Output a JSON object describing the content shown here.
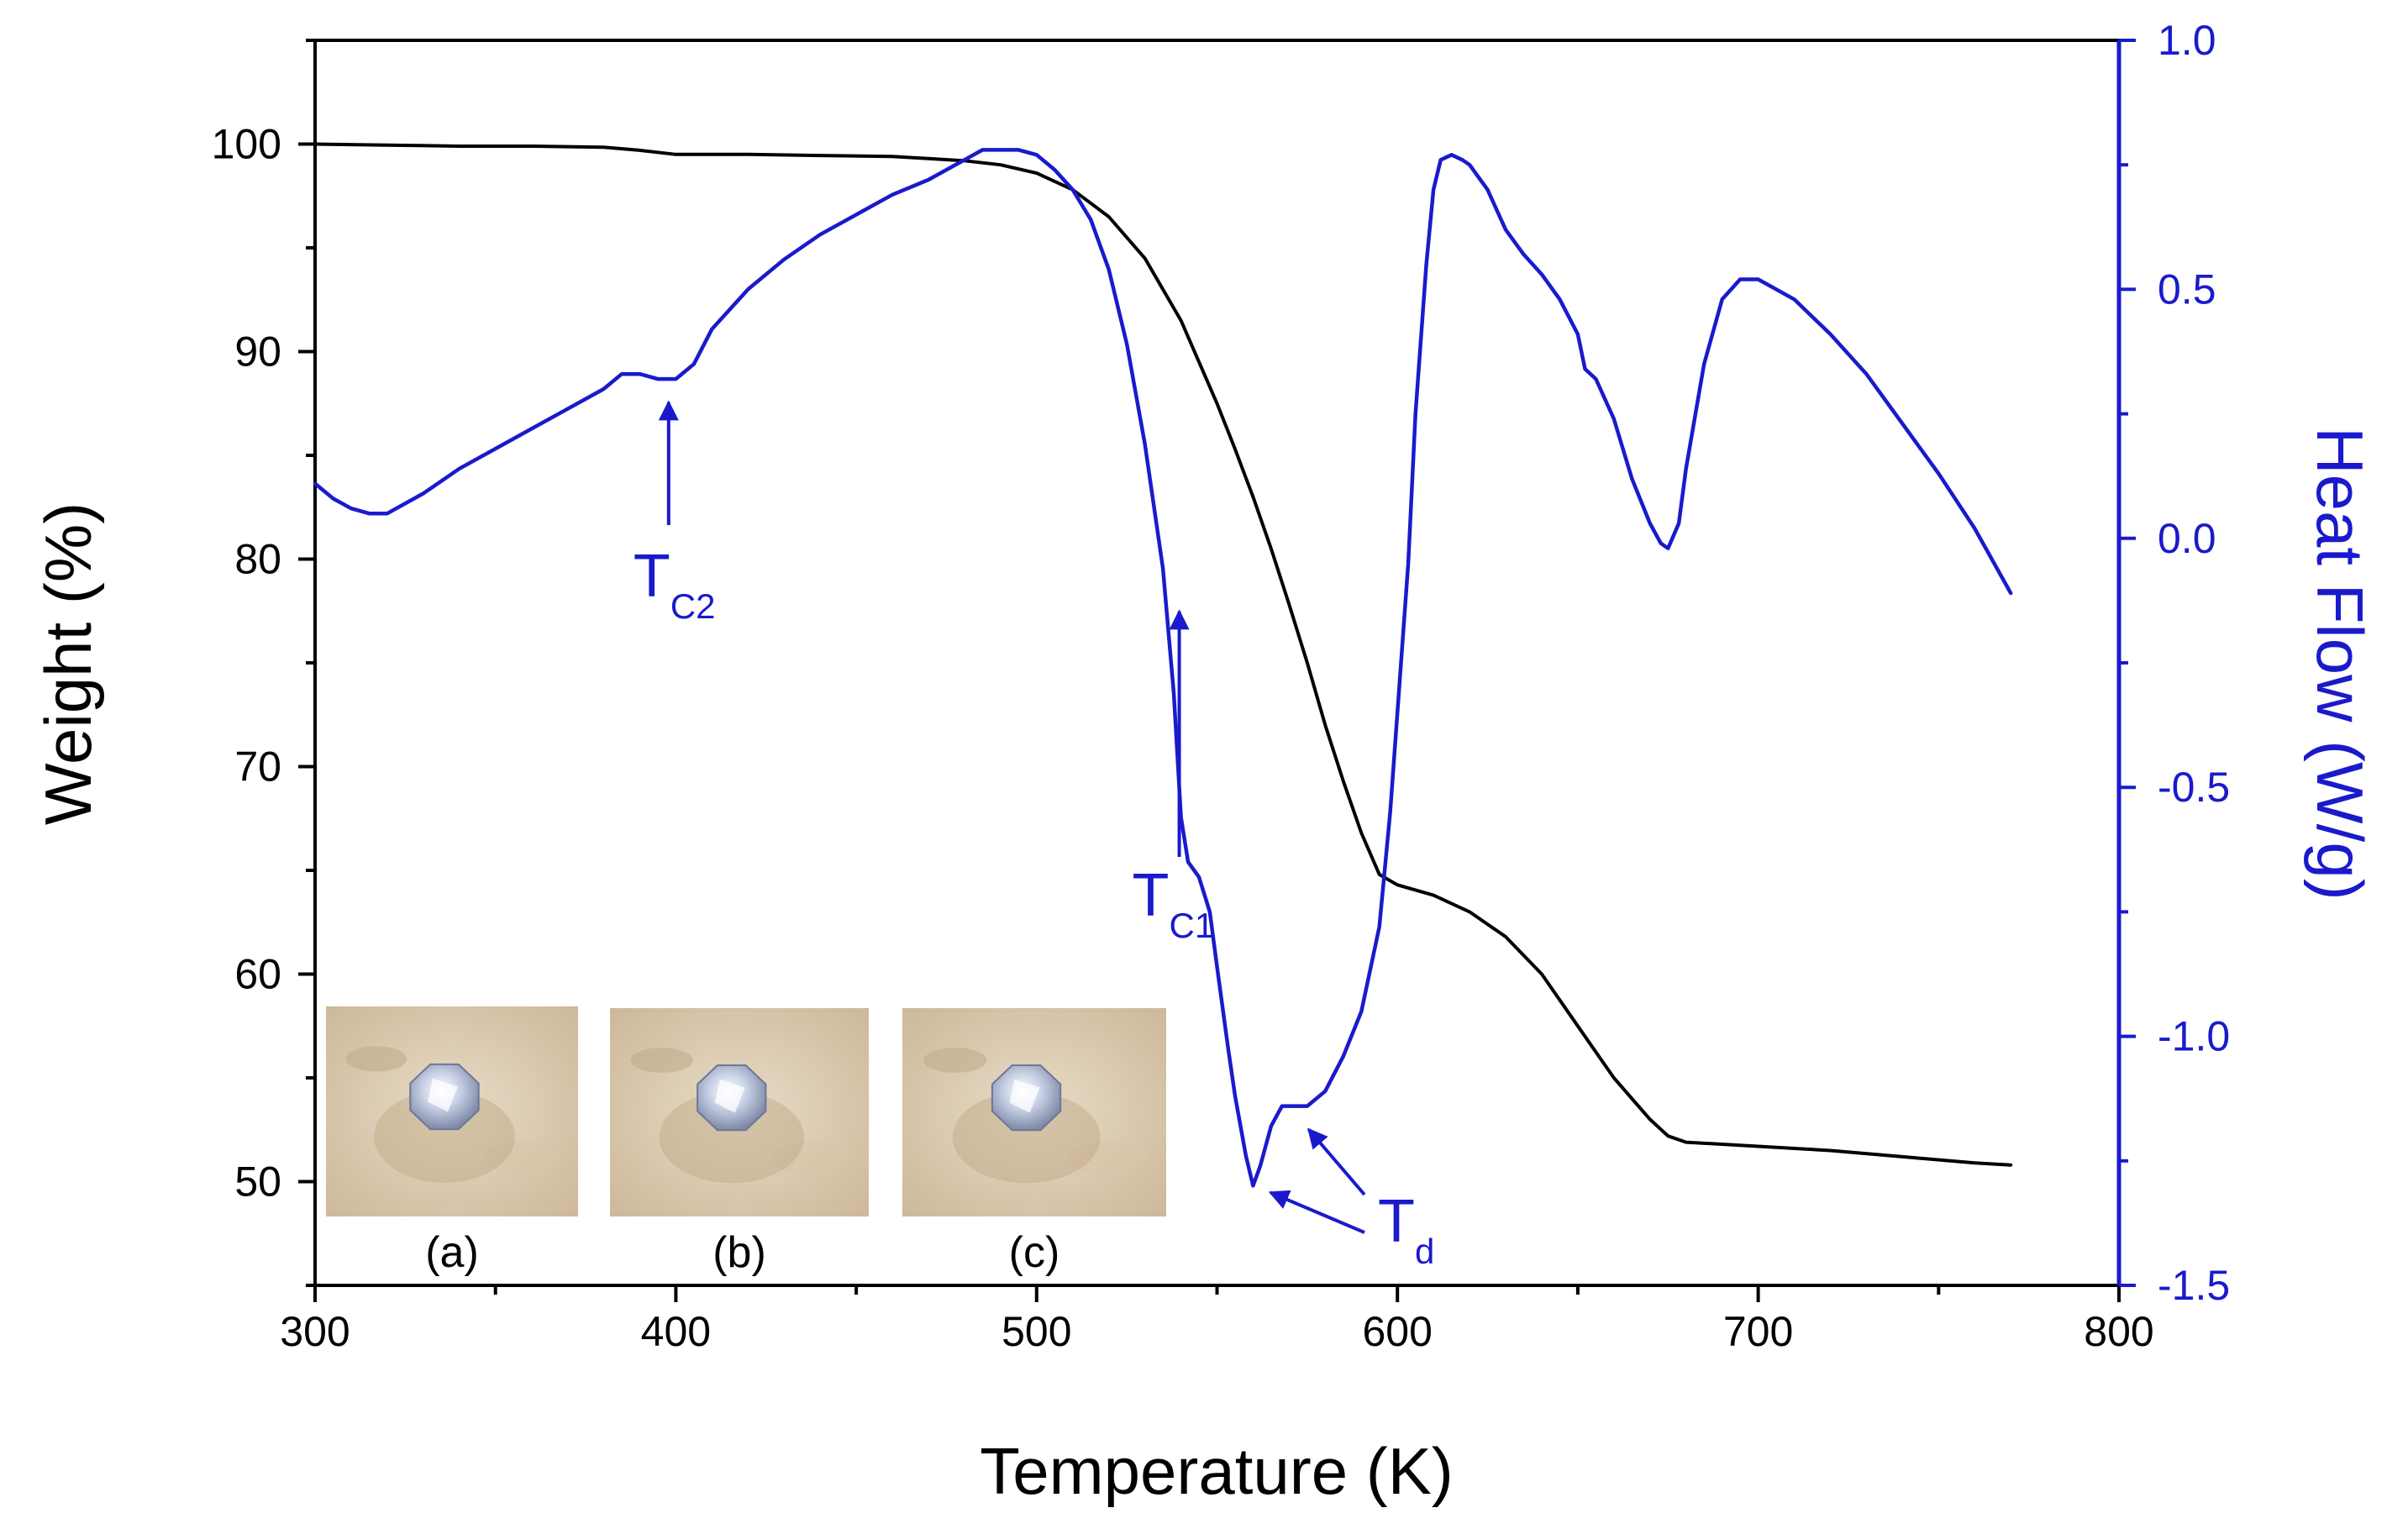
{
  "chart_data": {
    "type": "line",
    "title": "",
    "xlabel": "Temperature (K)",
    "ylabel": "Weight (%)",
    "ylabel_right": "Heat Flow (W/g)",
    "xlim": [
      300,
      800
    ],
    "ylim": [
      45,
      105
    ],
    "ylim_right": [
      -1.5,
      1.0
    ],
    "x_ticks": [
      300,
      400,
      500,
      600,
      700,
      800
    ],
    "y_ticks": [
      50,
      60,
      70,
      80,
      90,
      100
    ],
    "y_ticks_right": [
      "1.0",
      "0.5",
      "0.0",
      "-0.5",
      "-1.0",
      "-1.5"
    ],
    "y_ticks_right_values": [
      1.0,
      0.5,
      0.0,
      -0.5,
      -1.0,
      -1.5
    ],
    "colors": {
      "weight": "#000000",
      "heat_flow": "#1a1acc",
      "axis_right": "#1a1acc"
    },
    "series": [
      {
        "name": "Weight",
        "axis": "left",
        "color": "#000000",
        "x": [
          300,
          320,
          340,
          360,
          380,
          390,
          400,
          420,
          440,
          460,
          470,
          480,
          490,
          500,
          510,
          520,
          530,
          540,
          550,
          555,
          560,
          565,
          570,
          575,
          580,
          585,
          590,
          595,
          600,
          610,
          620,
          630,
          640,
          650,
          660,
          670,
          675,
          680,
          700,
          720,
          740,
          760,
          770
        ],
        "y": [
          100,
          99.95,
          99.9,
          99.9,
          99.85,
          99.7,
          99.5,
          99.5,
          99.45,
          99.4,
          99.3,
          99.2,
          99.0,
          98.6,
          97.8,
          96.5,
          94.5,
          91.5,
          87.5,
          85.3,
          83.0,
          80.5,
          77.8,
          75.0,
          72.0,
          69.3,
          66.8,
          64.8,
          64.3,
          63.8,
          63.0,
          61.8,
          60.0,
          57.5,
          55.0,
          53.0,
          52.2,
          51.9,
          51.7,
          51.5,
          51.2,
          50.9,
          50.8
        ]
      },
      {
        "name": "Heat Flow",
        "axis": "right",
        "color": "#1a1acc",
        "x": [
          300,
          305,
          310,
          315,
          320,
          330,
          340,
          350,
          360,
          370,
          380,
          385,
          390,
          395,
          400,
          405,
          410,
          420,
          430,
          440,
          450,
          460,
          470,
          480,
          485,
          490,
          495,
          500,
          505,
          510,
          515,
          520,
          525,
          530,
          535,
          538,
          540,
          542,
          545,
          548,
          550,
          553,
          555,
          558,
          560,
          562,
          565,
          568,
          570,
          575,
          580,
          585,
          590,
          595,
          598,
          600,
          603,
          605,
          608,
          610,
          612,
          615,
          618,
          620,
          625,
          630,
          635,
          640,
          645,
          650,
          652,
          655,
          660,
          665,
          670,
          673,
          675,
          678,
          680,
          685,
          690,
          695,
          700,
          710,
          720,
          730,
          740,
          750,
          760,
          770
        ],
        "y": [
          0.11,
          0.08,
          0.06,
          0.05,
          0.05,
          0.09,
          0.14,
          0.18,
          0.22,
          0.26,
          0.3,
          0.33,
          0.33,
          0.32,
          0.32,
          0.35,
          0.42,
          0.5,
          0.56,
          0.61,
          0.65,
          0.69,
          0.72,
          0.76,
          0.78,
          0.78,
          0.78,
          0.77,
          0.74,
          0.7,
          0.64,
          0.54,
          0.39,
          0.19,
          -0.06,
          -0.31,
          -0.56,
          -0.65,
          -0.68,
          -0.75,
          -0.86,
          -1.02,
          -1.12,
          -1.24,
          -1.3,
          -1.26,
          -1.18,
          -1.14,
          -1.14,
          -1.14,
          -1.11,
          -1.04,
          -0.95,
          -0.78,
          -0.55,
          -0.35,
          -0.05,
          0.25,
          0.55,
          0.7,
          0.76,
          0.77,
          0.76,
          0.75,
          0.7,
          0.62,
          0.57,
          0.53,
          0.48,
          0.41,
          0.34,
          0.32,
          0.24,
          0.12,
          0.03,
          -0.01,
          -0.02,
          0.03,
          0.14,
          0.35,
          0.48,
          0.52,
          0.52,
          0.48,
          0.41,
          0.33,
          0.23,
          0.13,
          0.02,
          -0.11
        ]
      }
    ],
    "annotations": [
      {
        "id": "tc2",
        "main": "T",
        "sub": "C2",
        "x": 398,
        "y_right": 0.28,
        "color": "#1a1acc"
      },
      {
        "id": "tc1",
        "main": "T",
        "sub": "C1",
        "x": 540,
        "y_right": -0.14,
        "color": "#1a1acc"
      },
      {
        "id": "td",
        "main": "T",
        "sub": "d",
        "points": [
          [
            562,
            -1.3
          ],
          [
            574,
            -1.17
          ]
        ],
        "color": "#1a1acc"
      }
    ],
    "insets": [
      {
        "id": "a",
        "label": "(a)"
      },
      {
        "id": "b",
        "label": "(b)"
      },
      {
        "id": "c",
        "label": "(c)"
      }
    ]
  }
}
